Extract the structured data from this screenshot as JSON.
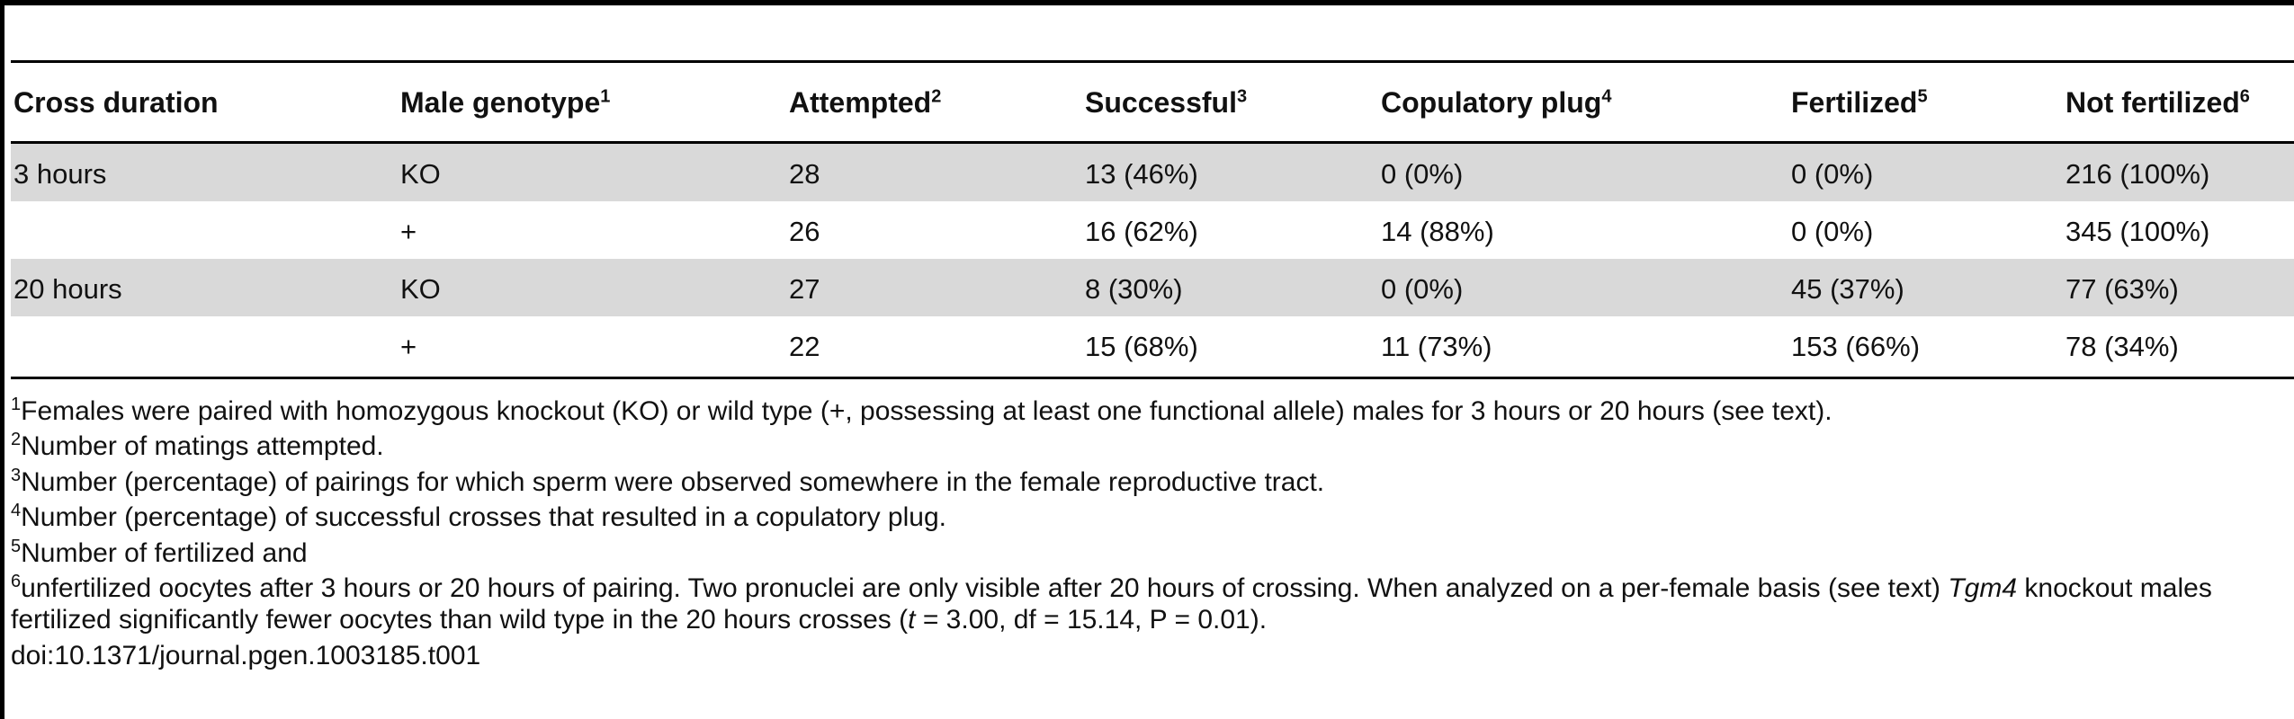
{
  "table": {
    "headers": [
      {
        "label": "Cross duration",
        "sup": ""
      },
      {
        "label": "Male genotype",
        "sup": "1"
      },
      {
        "label": "Attempted",
        "sup": "2"
      },
      {
        "label": "Successful",
        "sup": "3"
      },
      {
        "label": "Copulatory plug",
        "sup": "4"
      },
      {
        "label": "Fertilized",
        "sup": "5"
      },
      {
        "label": "Not fertilized",
        "sup": "6"
      }
    ],
    "rows": [
      [
        "3 hours",
        "KO",
        "28",
        "13 (46%)",
        "0 (0%)",
        "0 (0%)",
        "216 (100%)"
      ],
      [
        "",
        "+",
        "26",
        "16 (62%)",
        "14 (88%)",
        "0 (0%)",
        "345 (100%)"
      ],
      [
        "20 hours",
        "KO",
        "27",
        "8 (30%)",
        "0 (0%)",
        "45 (37%)",
        "77 (63%)"
      ],
      [
        "",
        "+",
        "22",
        "15 (68%)",
        "11 (73%)",
        "153 (66%)",
        "78 (34%)"
      ]
    ]
  },
  "footnotes": {
    "f1": {
      "sup": "1",
      "text": "Females were paired with homozygous knockout (KO) or wild type (+, possessing at least one functional allele) males for 3 hours or 20 hours (see text)."
    },
    "f2": {
      "sup": "2",
      "text": "Number of matings attempted."
    },
    "f3": {
      "sup": "3",
      "text": "Number (percentage) of pairings for which sperm were observed somewhere in the female reproductive tract."
    },
    "f4": {
      "sup": "4",
      "text": "Number (percentage) of successful crosses that resulted in a copulatory plug."
    },
    "f5": {
      "sup": "5",
      "text": "Number of fertilized and"
    },
    "f6": {
      "sup": "6",
      "text_a": "unfertilized oocytes after 3 hours or 20 hours of pairing. Two pronuclei are only visible after 20 hours of crossing. When analyzed on a per-female basis (see text) ",
      "gene": "Tgm4",
      "text_b": " knockout males fertilized significantly fewer oocytes than wild type in the 20 hours crosses (",
      "t_var": "t",
      "text_c": " = 3.00, df = 15.14, P = 0.01)."
    }
  },
  "doi": "doi:10.1371/journal.pgen.1003185.t001"
}
